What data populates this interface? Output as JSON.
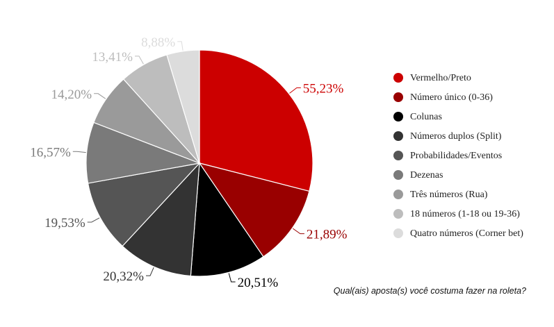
{
  "chart_data": {
    "type": "pie",
    "title": "Qual(ais) aposta(s) você costuma fazer na roleta?",
    "categories": [
      "Vermelho/Preto",
      "Número único (0-36)",
      "Colunas",
      "Números duplos (Split)",
      "Probabilidades/Eventos",
      "Dezenas",
      "Três números (Rua)",
      "18 números (1-18 ou 19-36)",
      "Quatro números (Corner bet)"
    ],
    "values": [
      55.23,
      21.89,
      20.51,
      20.32,
      19.53,
      16.57,
      14.2,
      13.41,
      8.88
    ],
    "labels": [
      "55,23%",
      "21,89%",
      "20,51%",
      "20,32%",
      "19,53%",
      "16,57%",
      "14,20%",
      "13,41%",
      "8,88%"
    ],
    "colors": [
      "#cc0000",
      "#990000",
      "#000000",
      "#333333",
      "#555555",
      "#7a7a7a",
      "#9a9a9a",
      "#bdbdbd",
      "#dcdcdc"
    ],
    "legend_position": "right"
  }
}
